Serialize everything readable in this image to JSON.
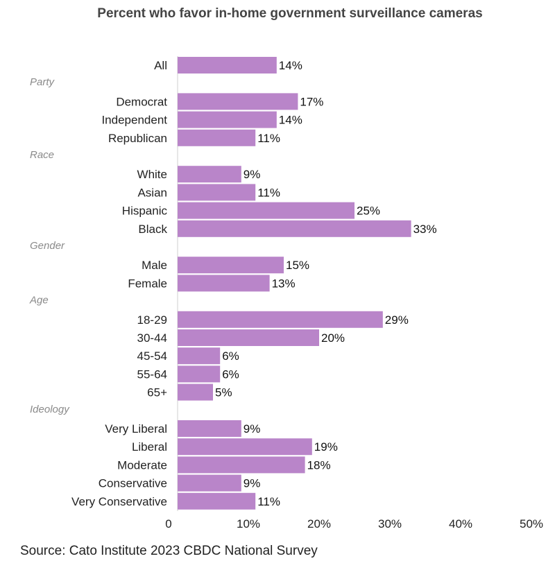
{
  "chart_data": {
    "type": "bar",
    "orientation": "horizontal",
    "title": "Percent who favor in-home government surveillance cameras",
    "xlim": [
      0,
      50
    ],
    "ticks": [
      "0",
      "10%",
      "20%",
      "30%",
      "40%",
      "50%"
    ],
    "tick_values": [
      0,
      10,
      20,
      30,
      40,
      50
    ],
    "grid": false,
    "bar_color": "#b985c9",
    "groups": [
      {
        "name": "",
        "items": [
          {
            "label": "All",
            "value": 14,
            "value_label": "14%"
          }
        ]
      },
      {
        "name": "Party",
        "items": [
          {
            "label": "Democrat",
            "value": 17,
            "value_label": "17%"
          },
          {
            "label": "Independent",
            "value": 14,
            "value_label": "14%"
          },
          {
            "label": "Republican",
            "value": 11,
            "value_label": "11%"
          }
        ]
      },
      {
        "name": "Race",
        "items": [
          {
            "label": "White",
            "value": 9,
            "value_label": "9%"
          },
          {
            "label": "Asian",
            "value": 11,
            "value_label": "11%"
          },
          {
            "label": "Hispanic",
            "value": 25,
            "value_label": "25%"
          },
          {
            "label": "Black",
            "value": 33,
            "value_label": "33%"
          }
        ]
      },
      {
        "name": "Gender",
        "items": [
          {
            "label": "Male",
            "value": 15,
            "value_label": "15%"
          },
          {
            "label": "Female",
            "value": 13,
            "value_label": "13%"
          }
        ]
      },
      {
        "name": "Age",
        "items": [
          {
            "label": "18-29",
            "value": 29,
            "value_label": "29%"
          },
          {
            "label": "30-44",
            "value": 20,
            "value_label": "20%"
          },
          {
            "label": "45-54",
            "value": 6,
            "value_label": "6%"
          },
          {
            "label": "55-64",
            "value": 6,
            "value_label": "6%"
          },
          {
            "label": "65+",
            "value": 5,
            "value_label": "5%"
          }
        ]
      },
      {
        "name": "Ideology",
        "items": [
          {
            "label": "Very Liberal",
            "value": 9,
            "value_label": "9%"
          },
          {
            "label": "Liberal",
            "value": 19,
            "value_label": "19%"
          },
          {
            "label": "Moderate",
            "value": 18,
            "value_label": "18%"
          },
          {
            "label": "Conservative",
            "value": 9,
            "value_label": "9%"
          },
          {
            "label": "Very Conservative",
            "value": 11,
            "value_label": "11%"
          }
        ]
      }
    ],
    "source": "Source: Cato Institute 2023 CBDC National Survey"
  }
}
